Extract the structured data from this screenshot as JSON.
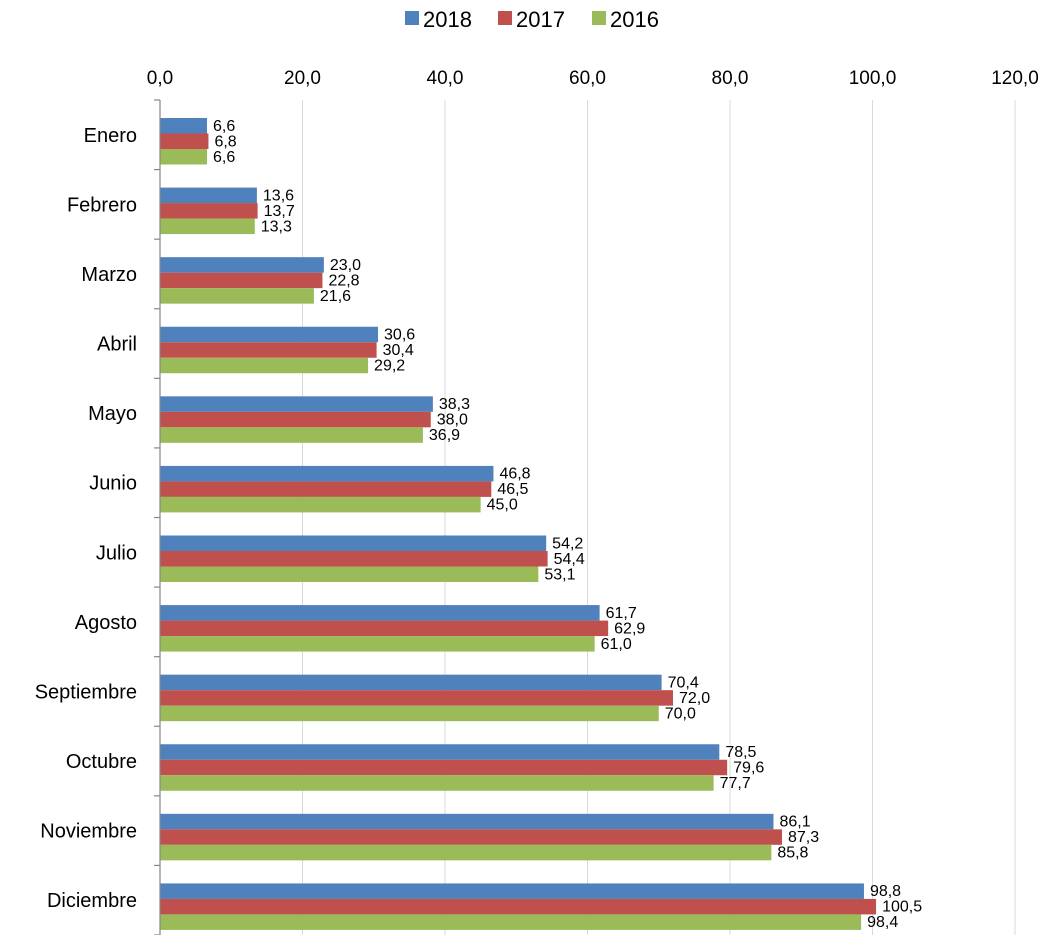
{
  "chart_data": {
    "type": "bar",
    "orientation": "horizontal",
    "categories": [
      "Enero",
      "Febrero",
      "Marzo",
      "Abril",
      "Mayo",
      "Junio",
      "Julio",
      "Agosto",
      "Septiembre",
      "Octubre",
      "Noviembre",
      "Diciembre"
    ],
    "series": [
      {
        "name": "2018",
        "color": "#4F81BD",
        "values": [
          6.6,
          13.6,
          23.0,
          30.6,
          38.3,
          46.8,
          54.2,
          61.7,
          70.4,
          78.5,
          86.1,
          98.8
        ],
        "labels": [
          "6,6",
          "13,6",
          "23,0",
          "30,6",
          "38,3",
          "46,8",
          "54,2",
          "61,7",
          "70,4",
          "78,5",
          "86,1",
          "98,8"
        ]
      },
      {
        "name": "2017",
        "color": "#C0504D",
        "values": [
          6.8,
          13.7,
          22.8,
          30.4,
          38.0,
          46.5,
          54.4,
          62.9,
          72.0,
          79.6,
          87.3,
          100.5
        ],
        "labels": [
          "6,8",
          "13,7",
          "22,8",
          "30,4",
          "38,0",
          "46,5",
          "54,4",
          "62,9",
          "72,0",
          "79,6",
          "87,3",
          "100,5"
        ]
      },
      {
        "name": "2016",
        "color": "#9BBB59",
        "values": [
          6.6,
          13.3,
          21.6,
          29.2,
          36.9,
          45.0,
          53.1,
          61.0,
          70.0,
          77.7,
          85.8,
          98.4
        ],
        "labels": [
          "6,6",
          "13,3",
          "21,6",
          "29,2",
          "36,9",
          "45,0",
          "53,1",
          "61,0",
          "70,0",
          "77,7",
          "85,8",
          "98,4"
        ]
      }
    ],
    "xlim": [
      0,
      120
    ],
    "ticks": [
      0,
      20,
      40,
      60,
      80,
      100,
      120
    ],
    "tick_labels": [
      "0,0",
      "20,0",
      "40,0",
      "60,0",
      "80,0",
      "100,0",
      "120,0"
    ],
    "axis_position": "top",
    "grid": true,
    "legend_position": "top-center"
  }
}
